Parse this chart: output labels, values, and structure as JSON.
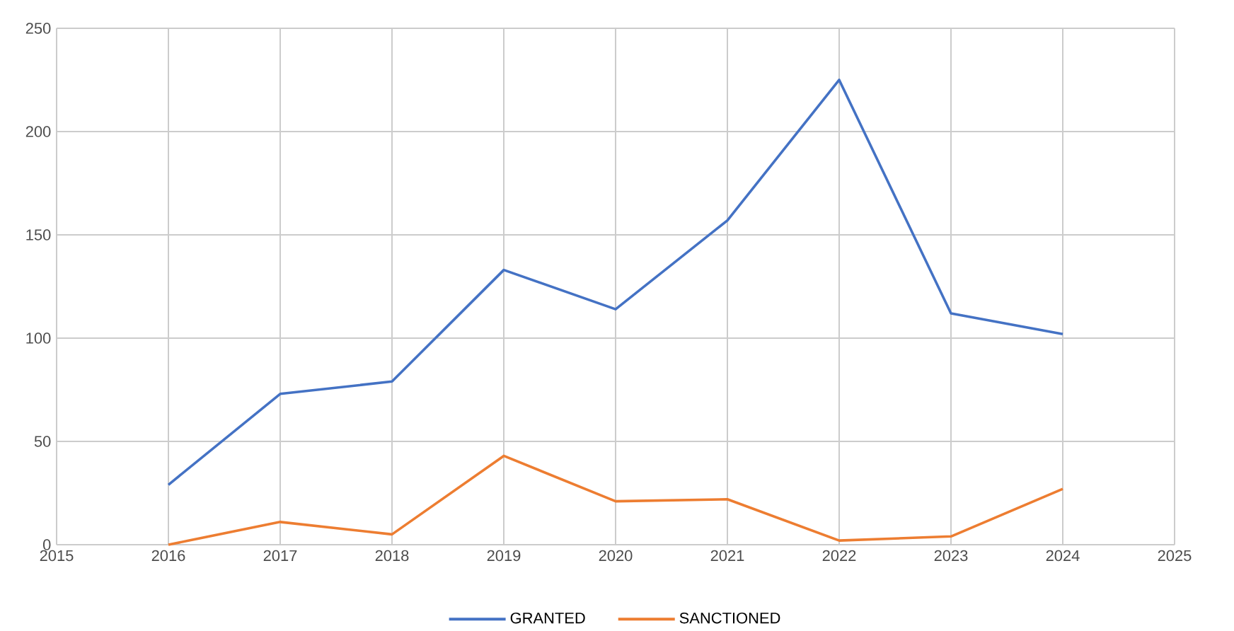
{
  "chart_data": {
    "type": "line",
    "x": [
      2016,
      2017,
      2018,
      2019,
      2020,
      2021,
      2022,
      2023,
      2024
    ],
    "series": [
      {
        "name": "GRANTED",
        "color": "#4472c4",
        "values": [
          29,
          73,
          79,
          133,
          114,
          157,
          225,
          112,
          102
        ]
      },
      {
        "name": "SANCTIONED",
        "color": "#ed7d31",
        "values": [
          0,
          11,
          5,
          43,
          21,
          22,
          2,
          4,
          27
        ]
      }
    ],
    "xlim": [
      2015,
      2025
    ],
    "xticks": [
      2015,
      2016,
      2017,
      2018,
      2019,
      2020,
      2021,
      2022,
      2023,
      2024,
      2025
    ],
    "ylim": [
      0,
      250
    ],
    "yticks": [
      0,
      50,
      100,
      150,
      200,
      250
    ],
    "grid": true,
    "legend": "bottom",
    "marker": "none",
    "line_style": "solid"
  }
}
